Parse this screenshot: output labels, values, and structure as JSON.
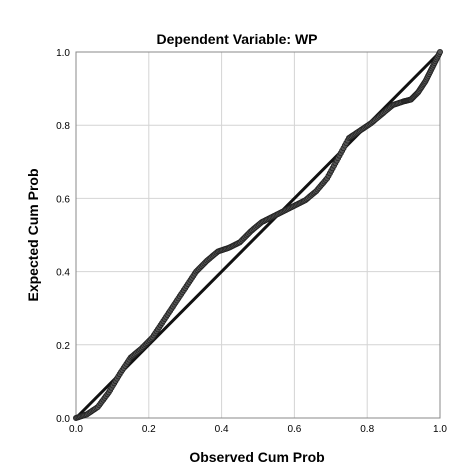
{
  "chart_data": {
    "type": "scatter",
    "title": "Dependent Variable: WP",
    "xlabel": "Observed Cum Prob",
    "ylabel": "Expected Cum Prob",
    "xlim": [
      0.0,
      1.0
    ],
    "ylim": [
      0.0,
      1.0
    ],
    "x_ticks": [
      "0.0",
      "0.2",
      "0.4",
      "0.6",
      "0.8",
      "1.0"
    ],
    "y_ticks": [
      "0.0",
      "0.2",
      "0.4",
      "0.6",
      "0.8",
      "1.0"
    ],
    "grid": true,
    "reference_line": {
      "from": [
        0.0,
        0.0
      ],
      "to": [
        1.0,
        1.0
      ]
    },
    "points_curve": [
      [
        0.0,
        0.0
      ],
      [
        0.03,
        0.01
      ],
      [
        0.06,
        0.03
      ],
      [
        0.09,
        0.07
      ],
      [
        0.12,
        0.12
      ],
      [
        0.15,
        0.165
      ],
      [
        0.18,
        0.19
      ],
      [
        0.21,
        0.22
      ],
      [
        0.24,
        0.265
      ],
      [
        0.27,
        0.31
      ],
      [
        0.3,
        0.355
      ],
      [
        0.33,
        0.4
      ],
      [
        0.36,
        0.43
      ],
      [
        0.39,
        0.455
      ],
      [
        0.42,
        0.465
      ],
      [
        0.45,
        0.48
      ],
      [
        0.48,
        0.51
      ],
      [
        0.51,
        0.535
      ],
      [
        0.54,
        0.55
      ],
      [
        0.57,
        0.565
      ],
      [
        0.6,
        0.58
      ],
      [
        0.63,
        0.595
      ],
      [
        0.66,
        0.62
      ],
      [
        0.69,
        0.655
      ],
      [
        0.72,
        0.71
      ],
      [
        0.75,
        0.765
      ],
      [
        0.78,
        0.785
      ],
      [
        0.81,
        0.805
      ],
      [
        0.84,
        0.83
      ],
      [
        0.87,
        0.855
      ],
      [
        0.9,
        0.865
      ],
      [
        0.92,
        0.87
      ],
      [
        0.94,
        0.89
      ],
      [
        0.96,
        0.92
      ],
      [
        0.98,
        0.96
      ],
      [
        1.0,
        1.0
      ]
    ],
    "colors": {
      "points": "#555555",
      "line": "#111111",
      "grid": "#d4d4d4",
      "frame": "#888888"
    }
  }
}
